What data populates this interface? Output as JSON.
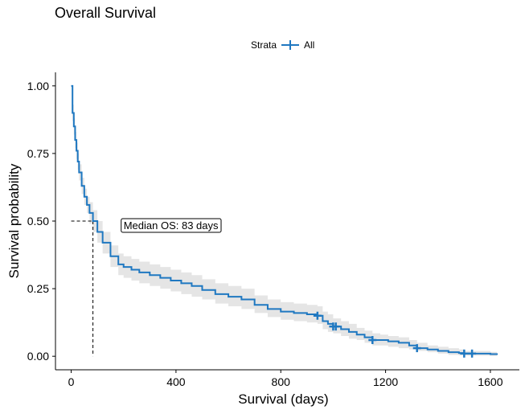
{
  "chart_data": {
    "type": "line",
    "title": "Overall Survival",
    "xlabel": "Survival (days)",
    "ylabel": "Survival probability",
    "xlim": [
      -60,
      1680
    ],
    "ylim": [
      -0.05,
      1.05
    ],
    "xticks": [
      0,
      400,
      800,
      1200,
      1600
    ],
    "xtick_labels": [
      "0",
      "400",
      "800",
      "1200",
      "1600"
    ],
    "yticks": [
      0,
      0.25,
      0.5,
      0.75,
      1.0
    ],
    "ytick_labels": [
      "0.00",
      "0.25",
      "0.50",
      "0.75",
      "1.00"
    ],
    "legend": {
      "title": "Strata",
      "entries": [
        "All"
      ],
      "position": "top"
    },
    "colors": {
      "line": "#1f78c1",
      "band": "#e5e5e5"
    },
    "series": [
      {
        "name": "All",
        "x": [
          0,
          5,
          10,
          15,
          20,
          25,
          30,
          40,
          50,
          60,
          70,
          83,
          100,
          120,
          150,
          180,
          200,
          230,
          260,
          300,
          340,
          380,
          420,
          460,
          500,
          550,
          600,
          650,
          700,
          750,
          800,
          850,
          900,
          940,
          960,
          980,
          1000,
          1030,
          1060,
          1090,
          1120,
          1150,
          1180,
          1210,
          1250,
          1290,
          1320,
          1360,
          1400,
          1440,
          1480,
          1500,
          1530,
          1560,
          1600,
          1625
        ],
        "y": [
          1.0,
          0.9,
          0.85,
          0.8,
          0.76,
          0.72,
          0.68,
          0.63,
          0.59,
          0.56,
          0.53,
          0.5,
          0.46,
          0.42,
          0.37,
          0.34,
          0.33,
          0.32,
          0.31,
          0.3,
          0.29,
          0.28,
          0.27,
          0.26,
          0.245,
          0.23,
          0.22,
          0.21,
          0.19,
          0.175,
          0.165,
          0.16,
          0.155,
          0.15,
          0.13,
          0.12,
          0.11,
          0.1,
          0.09,
          0.08,
          0.07,
          0.06,
          0.06,
          0.055,
          0.05,
          0.04,
          0.03,
          0.025,
          0.02,
          0.015,
          0.012,
          0.01,
          0.01,
          0.01,
          0.008,
          0.005
        ],
        "lower": [
          1.0,
          0.87,
          0.82,
          0.77,
          0.73,
          0.69,
          0.65,
          0.6,
          0.56,
          0.53,
          0.49,
          0.46,
          0.42,
          0.38,
          0.33,
          0.3,
          0.29,
          0.28,
          0.27,
          0.26,
          0.25,
          0.24,
          0.23,
          0.22,
          0.21,
          0.195,
          0.185,
          0.175,
          0.16,
          0.145,
          0.135,
          0.13,
          0.125,
          0.12,
          0.1,
          0.09,
          0.085,
          0.075,
          0.065,
          0.06,
          0.05,
          0.04,
          0.04,
          0.035,
          0.03,
          0.025,
          0.02,
          0.015,
          0.01,
          0.005,
          0.003,
          0.002,
          0.002,
          0.002,
          0.001,
          0.001
        ],
        "upper": [
          1.0,
          0.93,
          0.88,
          0.83,
          0.79,
          0.75,
          0.71,
          0.66,
          0.62,
          0.59,
          0.57,
          0.54,
          0.5,
          0.46,
          0.41,
          0.38,
          0.37,
          0.36,
          0.35,
          0.34,
          0.33,
          0.32,
          0.31,
          0.3,
          0.285,
          0.27,
          0.26,
          0.25,
          0.225,
          0.21,
          0.2,
          0.195,
          0.19,
          0.185,
          0.165,
          0.155,
          0.14,
          0.13,
          0.12,
          0.105,
          0.095,
          0.085,
          0.08,
          0.075,
          0.07,
          0.06,
          0.05,
          0.04,
          0.035,
          0.03,
          0.025,
          0.02,
          0.02,
          0.02,
          0.016,
          0.012
        ]
      }
    ],
    "censor_marks": [
      {
        "x": 940,
        "y": 0.15
      },
      {
        "x": 1000,
        "y": 0.11
      },
      {
        "x": 1010,
        "y": 0.11
      },
      {
        "x": 1150,
        "y": 0.06
      },
      {
        "x": 1320,
        "y": 0.03
      },
      {
        "x": 1500,
        "y": 0.01
      },
      {
        "x": 1530,
        "y": 0.01
      }
    ],
    "median": {
      "x": 83,
      "y": 0.5,
      "label": "Median OS: 83 days",
      "label_x": 200
    }
  }
}
